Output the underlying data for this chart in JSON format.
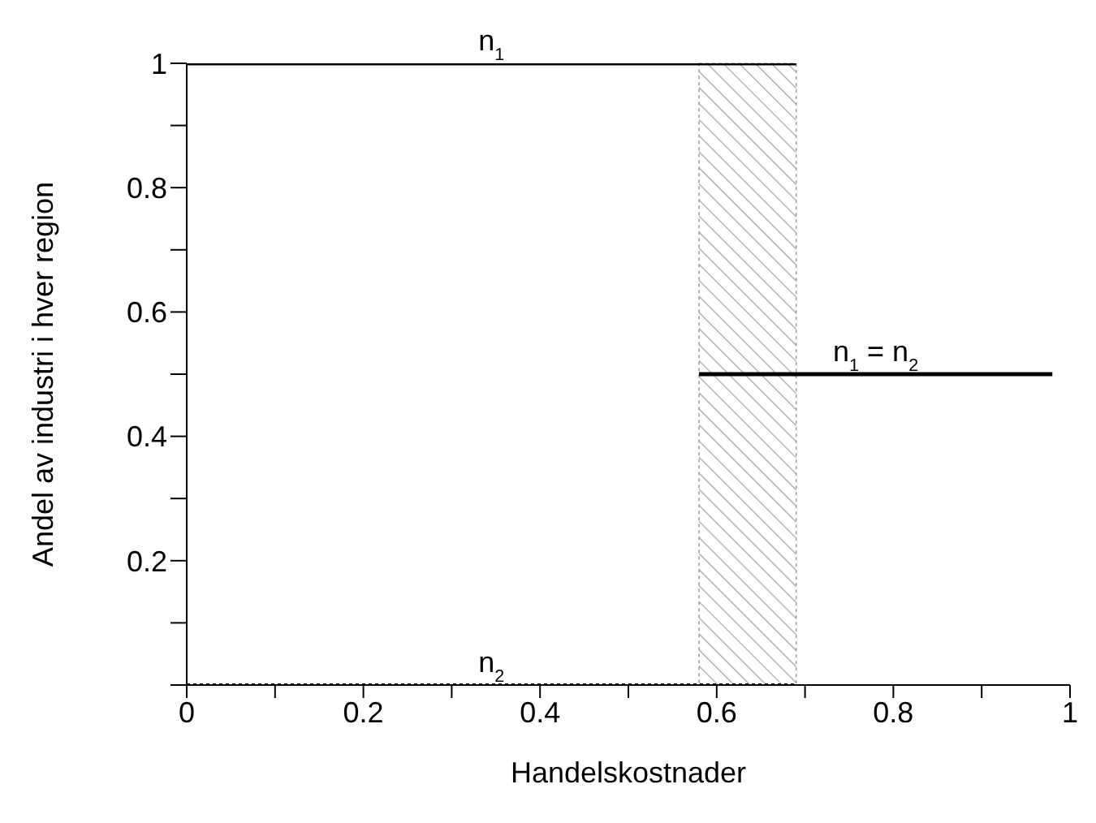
{
  "chart_data": {
    "type": "line",
    "xlabel": "Handelskostnader",
    "ylabel": "Andel av industri i hver region",
    "series": [
      {
        "name": "n$_{1}$",
        "color": "#000000",
        "x": [
          0,
          0.69
        ],
        "values": [
          1,
          1
        ],
        "line_style": "solid"
      },
      {
        "name": "n$_{2}$",
        "color": "#000000",
        "x": [
          0,
          0.69
        ],
        "values": [
          0,
          0
        ],
        "line_style": "dotted"
      },
      {
        "name": "n$_{1}$ = n$_{2}$",
        "color": "#000000",
        "x": [
          0.58,
          0.98
        ],
        "values": [
          0.5,
          0.5
        ],
        "line_style": "solid"
      }
    ],
    "bands": [
      {
        "axis": "x",
        "from": 0.58,
        "to": 0.69,
        "color": "#a0a0a0"
      }
    ],
    "xlim": [
      0,
      1
    ],
    "ylim": [
      0,
      1
    ],
    "xticks": [
      0,
      {
        "value": 0.1,
        "label": null
      },
      0.2,
      {
        "value": 0.3,
        "label": null
      },
      0.4,
      {
        "value": 0.5,
        "label": null
      },
      0.6,
      {
        "value": 0.7,
        "label": null
      },
      0.8,
      {
        "value": 0.9,
        "label": null
      },
      1
    ],
    "yticks": [
      {
        "value": 0,
        "label": null
      },
      {
        "value": 0.1,
        "label": null
      },
      0.2,
      {
        "value": 0.3,
        "label": null
      },
      0.4,
      {
        "value": 0.5,
        "label": null
      },
      0.6,
      {
        "value": 0.7,
        "label": null
      },
      0.8,
      {
        "value": 0.9,
        "label": null
      },
      1
    ],
    "grid": false,
    "legend": false,
    "marker": "none"
  }
}
